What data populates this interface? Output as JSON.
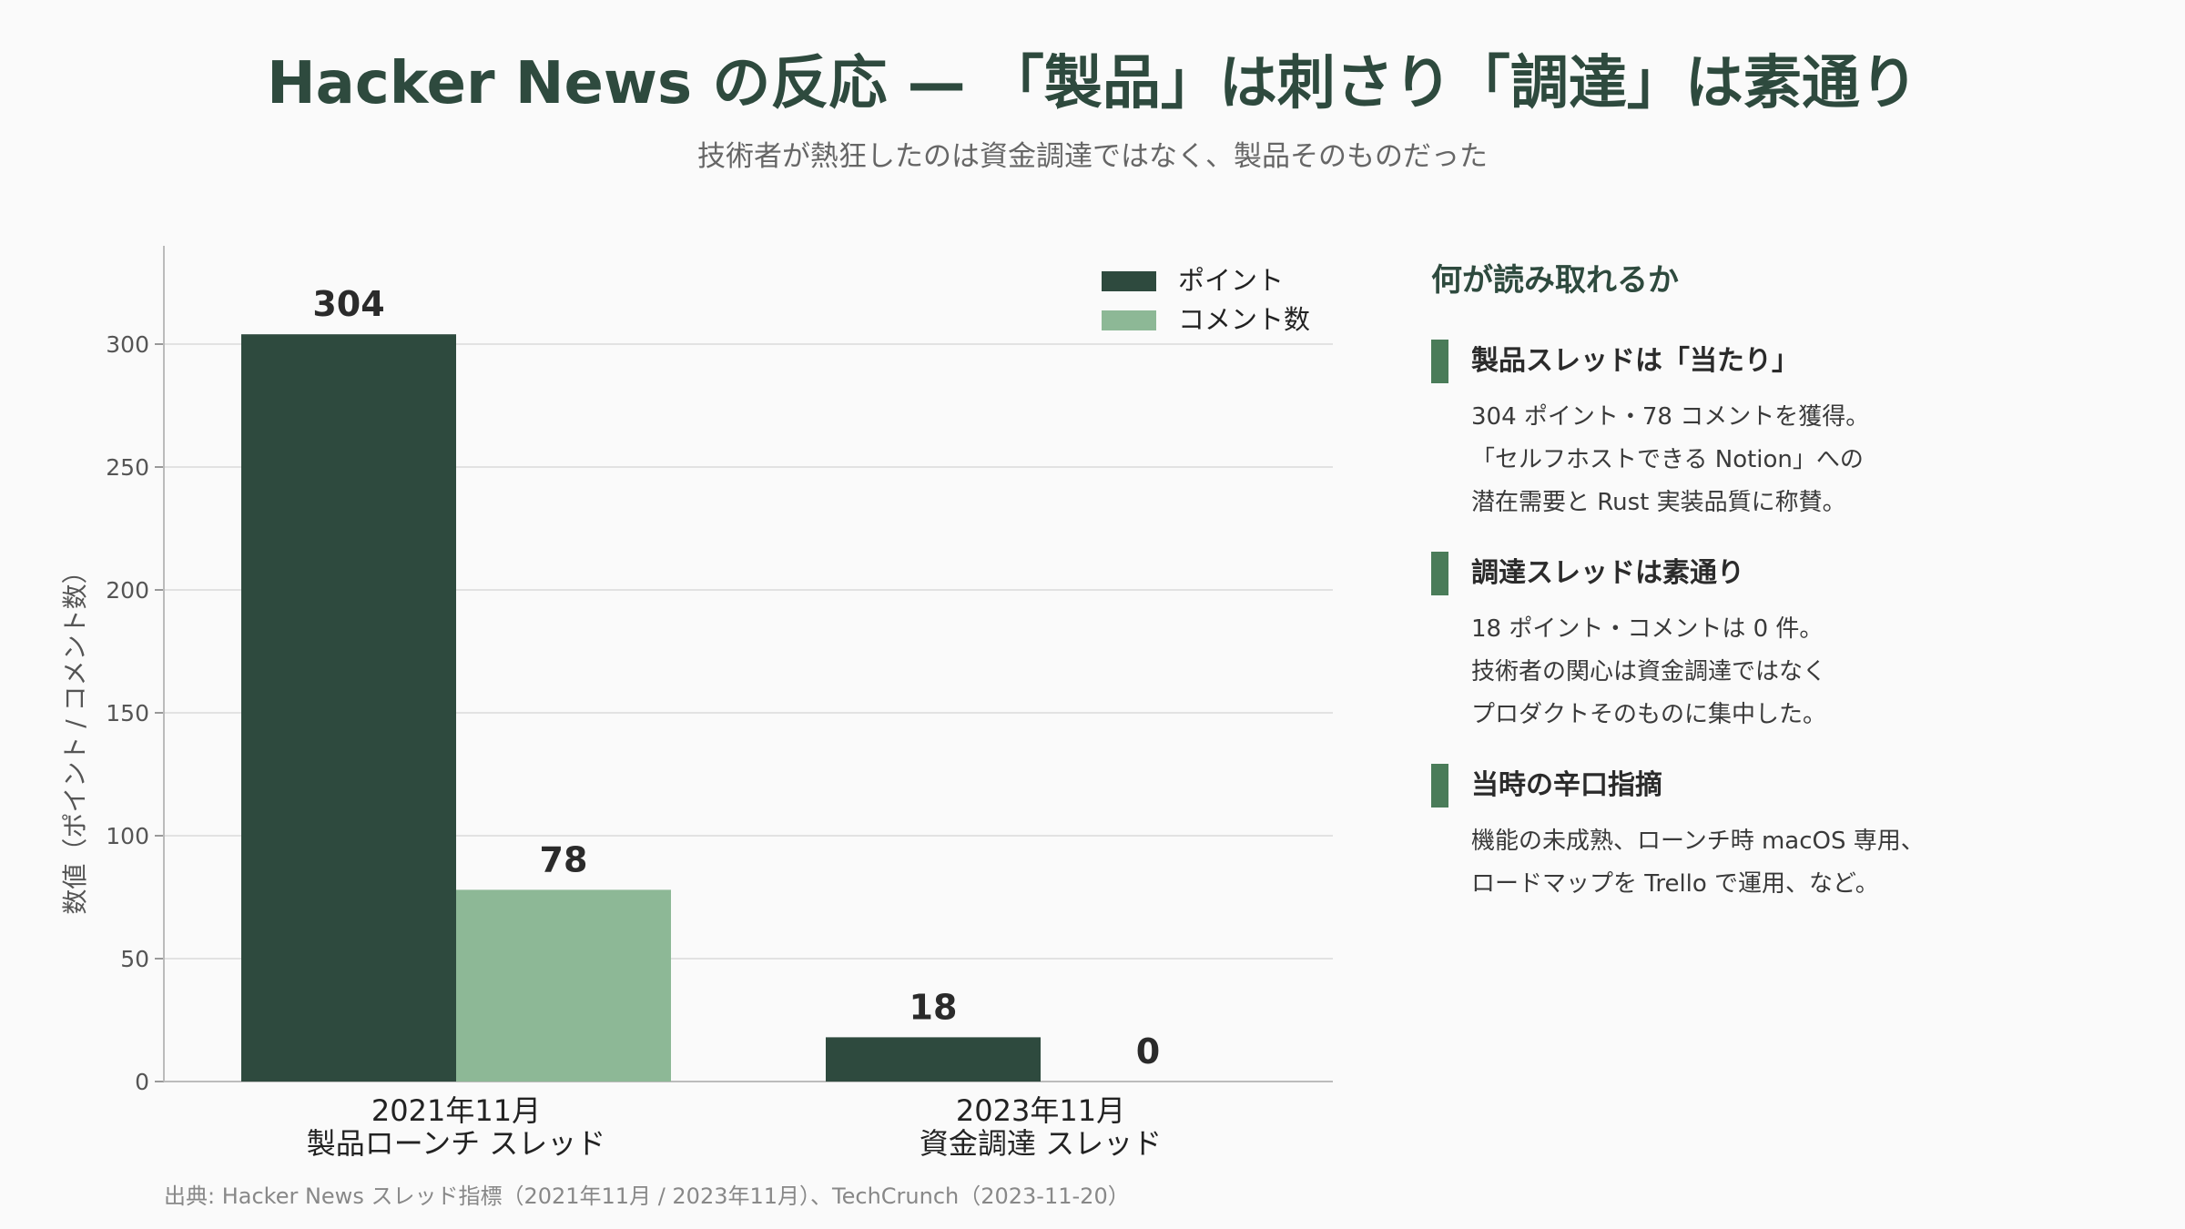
{
  "title": "Hacker News の反応 — 「製品」は刺さり「調達」は素通り",
  "subtitle": "技術者が熱狂したのは資金調達ではなく、製品そのものだった",
  "chart_data": {
    "type": "bar",
    "categories": [
      [
        "2021年11月",
        "製品ローンチ スレッド"
      ],
      [
        "2023年11月",
        "資金調達 スレッド"
      ]
    ],
    "series": [
      {
        "name": "ポイント",
        "values": [
          304,
          18
        ],
        "color": "#2e4a3e"
      },
      {
        "name": "コメント数",
        "values": [
          78,
          0
        ],
        "color": "#8db896"
      }
    ],
    "ylabel": "数値（ポイント / コメント数）",
    "xlabel": "",
    "ylim": [
      0,
      340
    ],
    "yticks": [
      0,
      50,
      100,
      150,
      200,
      250,
      300
    ],
    "grid": true,
    "legend_position": "top-right"
  },
  "panel": {
    "heading": "何が読み取れるか",
    "sections": [
      {
        "title": "製品スレッドは「当たり」",
        "lines": [
          "304 ポイント・78 コメントを獲得。",
          "「セルフホストできる Notion」への",
          "潜在需要と Rust 実装品質に称賛。"
        ]
      },
      {
        "title": "調達スレッドは素通り",
        "lines": [
          "18 ポイント・コメントは 0 件。",
          "技術者の関心は資金調達ではなく",
          "プロダクトそのものに集中した。"
        ]
      },
      {
        "title": "当時の辛口指摘",
        "lines": [
          "機能の未成熟、ローンチ時 macOS 専用、",
          "ロードマップを Trello で運用、など。"
        ]
      }
    ]
  },
  "source": "出典: Hacker News スレッド指標（2021年11月 / 2023年11月）、TechCrunch（2023-11-20）",
  "colors": {
    "accent": "#4a7c59",
    "dark": "#2e4a3e",
    "light": "#8db896"
  }
}
